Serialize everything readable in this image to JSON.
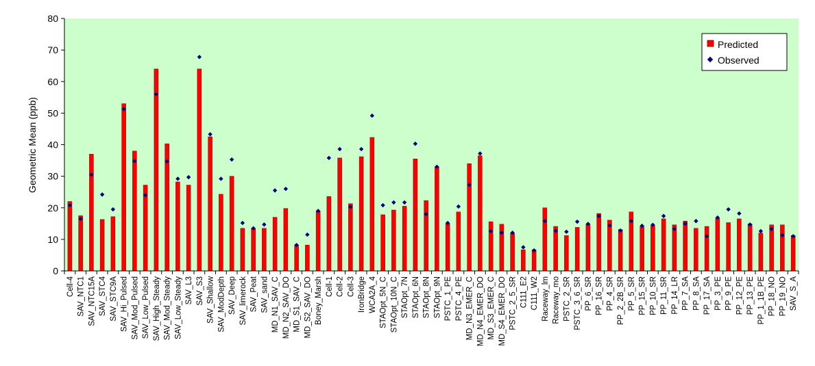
{
  "colors": {
    "plot_bg": "#ccffcc",
    "bar": "#ff0000",
    "bar_edge": "#800000",
    "marker": "#000080",
    "axis": "#000000"
  },
  "chart_data": {
    "type": "bar",
    "title": "",
    "xlabel": "",
    "ylabel": "Geometric Mean (ppb)",
    "ylim": [
      0,
      80
    ],
    "yticks": [
      0,
      10,
      20,
      30,
      40,
      50,
      60,
      70,
      80
    ],
    "grid": false,
    "legend_position": "top-right",
    "categories": [
      "Cell-4",
      "SAV_NTC1",
      "SAV_NTC15A",
      "SAV_STC4",
      "SAV_STC9A",
      "SAV_Hi_Pulsed",
      "SAV_Mod_Pulsed",
      "SAV_Low_Pulsed",
      "SAV_High_Steady",
      "SAV_Mod_Steady",
      "SAV_Low_Steady",
      "SAV_L3",
      "SAV_S3",
      "SAV_Shallow",
      "SAV_ModDepth",
      "SAV_Deep",
      "SAV_limerock",
      "SAV_Peat",
      "SAV_sand",
      "MD_N1_SAV_C",
      "MD_N2_SAV_DO",
      "MD_S1_SAV_C",
      "MD_S2_SAV_DO",
      "Boney_Marsh",
      "Cell-1",
      "Cell-2",
      "Cell-3",
      "IronBridge",
      "WCA2A_4",
      "STAOpt_5N_C",
      "STAOpt_10N_C",
      "STAOpt_7N",
      "STAOpt_6N",
      "STAOpt_8N",
      "STAOpt_9N",
      "PSTC_1_PE",
      "PSTC_4_PE",
      "MD_N3_EMER_C",
      "MD_N4_EMER_DO",
      "MD_S3_EMER_C",
      "MD_S4_EMER_DO",
      "PSTC_2_5_SR",
      "C111_E2",
      "C111_W2",
      "Raceway_lm",
      "Raceway_mo",
      "PSTC_2_SR",
      "PSTC_3_6_SR",
      "PP_6_SR",
      "PP_16_SR",
      "PP_4_SR",
      "PP_2_2B_SR",
      "PP_5_SR",
      "PP_15_SR",
      "PP_10_SR",
      "PP_11_SR",
      "PP_14_LR",
      "PP_7_SA",
      "PP_8_SA",
      "PP_17_SA",
      "PP_3_PE",
      "PP_9_PE",
      "PP_12_PE",
      "PP_13_PE",
      "PP_1_1B_PE",
      "PP_18_NO",
      "PP_19_NO",
      "SAV_S_A"
    ],
    "series": [
      {
        "name": "Predicted",
        "kind": "bar",
        "values": [
          22,
          17.5,
          37,
          16.3,
          17.2,
          53,
          38,
          27.2,
          64,
          40.3,
          28.2,
          27.2,
          64,
          42.5,
          24.3,
          30,
          13.5,
          13.5,
          13.5,
          17,
          19.8,
          8.2,
          8.2,
          19,
          23.6,
          35.8,
          21.3,
          36.2,
          42.3,
          17.8,
          19.3,
          20.5,
          35.5,
          22.3,
          33,
          15,
          18.7,
          34,
          36.5,
          15.6,
          14.8,
          12,
          6.7,
          6.7,
          20,
          14.1,
          11.2,
          13.8,
          14.9,
          18.2,
          16.1,
          13.1,
          18.7,
          14.1,
          14.4,
          16.5,
          14.6,
          15.8,
          13.5,
          14.1,
          16.7,
          15.3,
          16.5,
          14.9,
          12,
          14.6,
          14.6,
          11.2
        ]
      },
      {
        "name": "Observed",
        "kind": "scatter",
        "values": [
          20.8,
          16.5,
          30.5,
          24.2,
          19.5,
          51.3,
          34.8,
          24,
          56,
          34.7,
          29.2,
          29.7,
          67.8,
          43.3,
          29.2,
          35.3,
          15.2,
          13.5,
          14.7,
          25.5,
          26,
          8.2,
          11.5,
          19,
          35.8,
          38.6,
          20.3,
          38.6,
          49.2,
          20.8,
          21.7,
          21.7,
          40.3,
          18,
          33,
          15.2,
          20.4,
          27.3,
          37.2,
          12.6,
          12.1,
          12.1,
          7.5,
          6.5,
          15.8,
          12.7,
          12.4,
          15.6,
          14.9,
          17.4,
          14.4,
          12.8,
          15.8,
          14.3,
          14.6,
          17.4,
          13.3,
          15,
          15.8,
          11,
          16.9,
          19.5,
          18.2,
          14.7,
          12.6,
          13.3,
          11.3,
          11
        ]
      }
    ]
  }
}
